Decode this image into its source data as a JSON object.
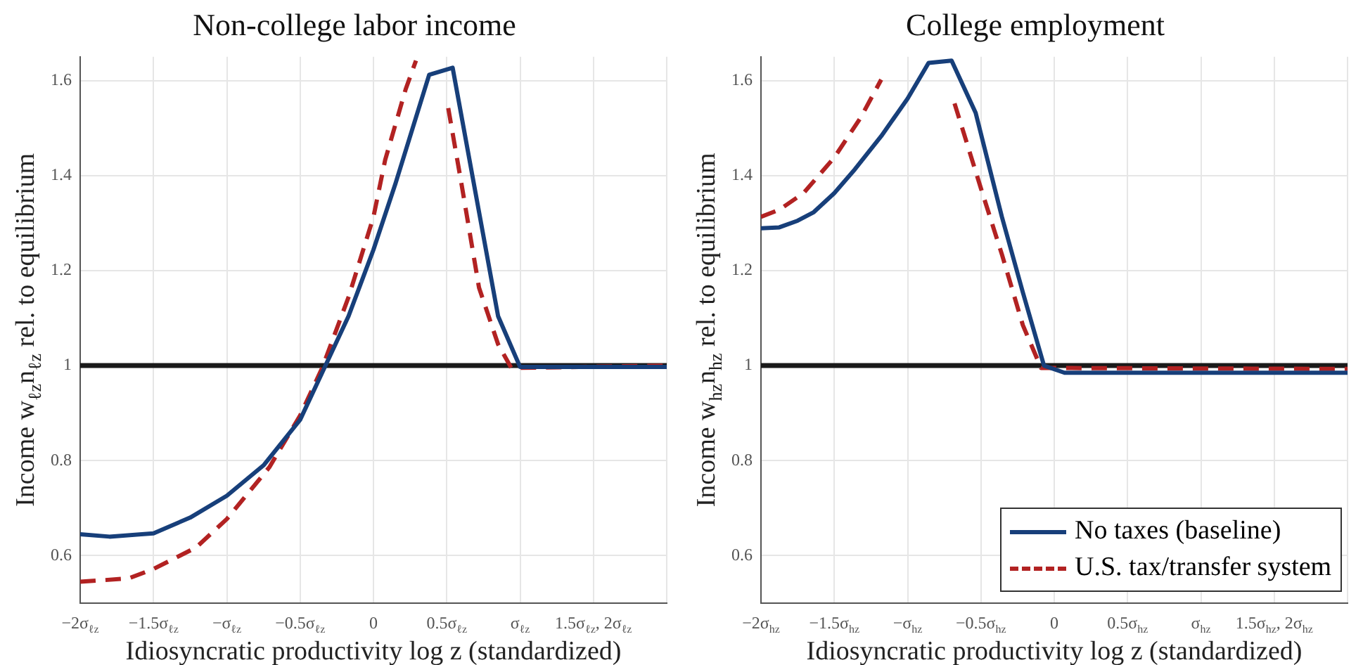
{
  "chart_data": [
    {
      "type": "line",
      "title": "Non-college labor income",
      "xlabel": "Idiosyncratic productivity log z (standardized)",
      "ylabel": "Income w$_{ℓz}$n$_{ℓz}$ rel. to equilibrium",
      "xlim": [
        -2,
        2
      ],
      "xticks": [
        {
          "value": -2,
          "label": "−2σ$_{ℓz}$"
        },
        {
          "value": -1.5,
          "label": "−1.5σ$_{ℓz}$"
        },
        {
          "value": -1,
          "label": "−σ$_{ℓz}$"
        },
        {
          "value": -0.5,
          "label": "−0.5σ$_{ℓz}$"
        },
        0,
        {
          "value": 0.5,
          "label": "0.5σ$_{ℓz}$"
        },
        {
          "value": 1,
          "label": "σ$_{ℓz}$"
        },
        {
          "value": 1.5,
          "label": "1.5σ$_{ℓz}$, 2σ$_{ℓz}$"
        },
        {
          "value": 2,
          "label": null
        }
      ],
      "ylim": [
        0.5,
        1.65
      ],
      "yticks": [
        0.6,
        0.8,
        1,
        1.2,
        1.4,
        1.6
      ],
      "grid": true,
      "legend": false,
      "ref_lines": [
        {
          "axis": "y",
          "value": 1,
          "color": "#1a1a1a"
        }
      ],
      "series": [
        {
          "color": "#173f7a",
          "line_style": "solid",
          "x": [
            -2,
            -1.8,
            -1.5,
            -1.25,
            -1,
            -0.75,
            -0.5,
            -0.35,
            -0.17,
            0,
            0.15,
            0.38,
            0.54,
            0.85,
            1,
            2
          ],
          "values": [
            0.645,
            0.64,
            0.647,
            0.68,
            0.726,
            0.79,
            0.886,
            0.985,
            1.104,
            1.244,
            1.383,
            1.612,
            1.627,
            1.104,
            0.997,
            0.997
          ]
        },
        {
          "color": "#b22222",
          "line_style": "dashed",
          "x": [
            -2,
            -1.67,
            -1.5,
            -1.21,
            -1,
            -0.71,
            -0.5,
            -0.35,
            -0.17,
            0,
            0.08,
            0.22,
            0.29,
            0.36,
            0.44,
            0.51,
            0.6,
            0.72,
            0.85,
            0.94,
            2
          ],
          "values": [
            0.545,
            0.552,
            0.572,
            0.617,
            0.677,
            0.786,
            0.895,
            0.995,
            1.144,
            1.313,
            1.433,
            1.582,
            1.642,
            null,
            null,
            1.542,
            1.383,
            1.164,
            1.045,
            0.995,
            1.0
          ]
        }
      ]
    },
    {
      "type": "line",
      "title": "College employment",
      "xlabel": "Idiosyncratic productivity log z (standardized)",
      "ylabel": "Income w$_{hz}$n$_{hz}$ rel. to equilibrium",
      "xlim": [
        -2,
        2
      ],
      "xticks": [
        {
          "value": -2,
          "label": "−2σ$_{hz}$"
        },
        {
          "value": -1.5,
          "label": "−1.5σ$_{hz}$"
        },
        {
          "value": -1,
          "label": "−σ$_{hz}$"
        },
        {
          "value": -0.5,
          "label": "−0.5σ$_{hz}$"
        },
        0,
        {
          "value": 0.5,
          "label": "0.5σ$_{hz}$"
        },
        {
          "value": 1,
          "label": "σ$_{hz}$"
        },
        {
          "value": 1.5,
          "label": "1.5σ$_{hz}$, 2σ$_{hz}$"
        },
        {
          "value": 2,
          "label": null
        }
      ],
      "ylim": [
        0.5,
        1.65
      ],
      "yticks": [
        0.6,
        0.8,
        1,
        1.2,
        1.4,
        1.6
      ],
      "grid": true,
      "legend": "bottom right",
      "ref_lines": [
        {
          "axis": "y",
          "value": 1,
          "color": "#1a1a1a"
        }
      ],
      "series": [
        {
          "name": "No taxes (baseline)",
          "color": "#173f7a",
          "line_style": "solid",
          "x": [
            -2,
            -1.875,
            -1.75,
            -1.64,
            -1.5,
            -1.36,
            -1.18,
            -1,
            -0.857,
            -0.7,
            -0.536,
            -0.357,
            -0.214,
            -0.07,
            0.07,
            2
          ],
          "values": [
            1.289,
            1.291,
            1.305,
            1.323,
            1.363,
            1.413,
            1.483,
            1.562,
            1.637,
            1.642,
            1.532,
            1.313,
            1.154,
            1.0,
            0.985,
            0.985
          ]
        },
        {
          "name": "U.S. tax/transfer system",
          "color": "#b22222",
          "line_style": "dashed",
          "x": [
            -2,
            -1.875,
            -1.71,
            -1.5,
            -1.32,
            -1.18,
            -1.08,
            -0.8,
            -0.68,
            -0.5,
            -0.357,
            -0.214,
            -0.09,
            2
          ],
          "values": [
            1.313,
            1.328,
            1.363,
            1.438,
            1.522,
            1.602,
            null,
            null,
            1.552,
            1.373,
            1.234,
            1.085,
            0.995,
            0.993
          ]
        }
      ]
    }
  ]
}
